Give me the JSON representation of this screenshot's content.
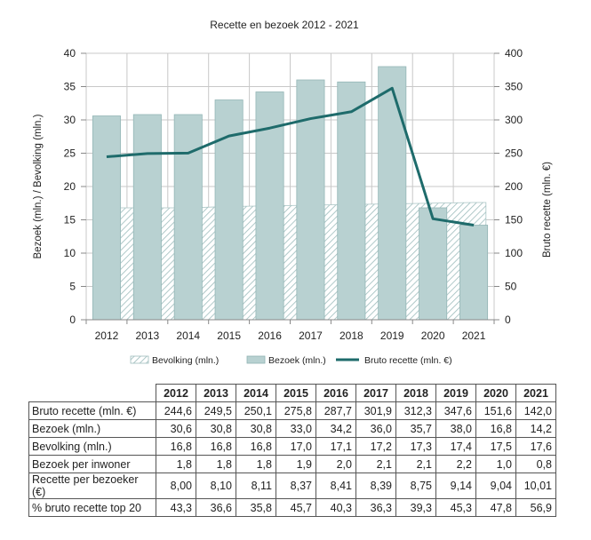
{
  "chart_data": {
    "type": "bar",
    "title": "Recette en bezoek 2012 - 2021",
    "categories": [
      "2012",
      "2013",
      "2014",
      "2015",
      "2016",
      "2017",
      "2018",
      "2019",
      "2020",
      "2021"
    ],
    "ylabel_left": "Bezoek (mln.) / Bevolking (mln.)",
    "ylabel_right": "Bruto recette (mln. €)",
    "ylim_left": [
      0,
      40
    ],
    "ylim_right": [
      0,
      400
    ],
    "yticks_left": [
      "0",
      "5",
      "10",
      "15",
      "20",
      "25",
      "30",
      "35",
      "40"
    ],
    "yticks_right": [
      "0",
      "50",
      "100",
      "150",
      "200",
      "250",
      "300",
      "350",
      "400"
    ],
    "grid": true,
    "legend_position": "bottom",
    "series": [
      {
        "name": "Bevolking (mln.)",
        "kind": "area",
        "axis": "left",
        "color": "#cfdfde",
        "values": [
          16.8,
          16.8,
          16.8,
          17.0,
          17.1,
          17.2,
          17.3,
          17.4,
          17.5,
          17.6
        ]
      },
      {
        "name": "Bezoek (mln.)",
        "kind": "bar",
        "axis": "left",
        "color": "#b8d1d1",
        "values": [
          30.6,
          30.8,
          30.8,
          33.0,
          34.2,
          36.0,
          35.7,
          38.0,
          16.8,
          14.2
        ]
      },
      {
        "name": "Bruto recette (mln. €)",
        "kind": "line",
        "axis": "right",
        "color": "#1e6b6b",
        "values": [
          244.6,
          249.5,
          250.1,
          275.8,
          287.7,
          301.9,
          312.3,
          347.6,
          151.6,
          142.0
        ]
      }
    ]
  },
  "table": {
    "years": [
      "2012",
      "2013",
      "2014",
      "2015",
      "2016",
      "2017",
      "2018",
      "2019",
      "2020",
      "2021"
    ],
    "rows": [
      {
        "label": "Bruto recette (mln. €)",
        "values": [
          "244,6",
          "249,5",
          "250,1",
          "275,8",
          "287,7",
          "301,9",
          "312,3",
          "347,6",
          "151,6",
          "142,0"
        ]
      },
      {
        "label": "Bezoek (mln.)",
        "values": [
          "30,6",
          "30,8",
          "30,8",
          "33,0",
          "34,2",
          "36,0",
          "35,7",
          "38,0",
          "16,8",
          "14,2"
        ]
      },
      {
        "label": "Bevolking (mln.)",
        "values": [
          "16,8",
          "16,8",
          "16,8",
          "17,0",
          "17,1",
          "17,2",
          "17,3",
          "17,4",
          "17,5",
          "17,6"
        ]
      },
      {
        "label": "Bezoek per inwoner",
        "values": [
          "1,8",
          "1,8",
          "1,8",
          "1,9",
          "2,0",
          "2,1",
          "2,1",
          "2,2",
          "1,0",
          "0,8"
        ]
      },
      {
        "label": "Recette per bezoeker (€)",
        "values": [
          "8,00",
          "8,10",
          "8,11",
          "8,37",
          "8,41",
          "8,39",
          "8,75",
          "9,14",
          "9,04",
          "10,01"
        ]
      },
      {
        "label": "% bruto recette top 20",
        "values": [
          "43,3",
          "36,6",
          "35,8",
          "45,7",
          "40,3",
          "36,3",
          "39,3",
          "45,3",
          "47,8",
          "56,9"
        ]
      }
    ]
  }
}
